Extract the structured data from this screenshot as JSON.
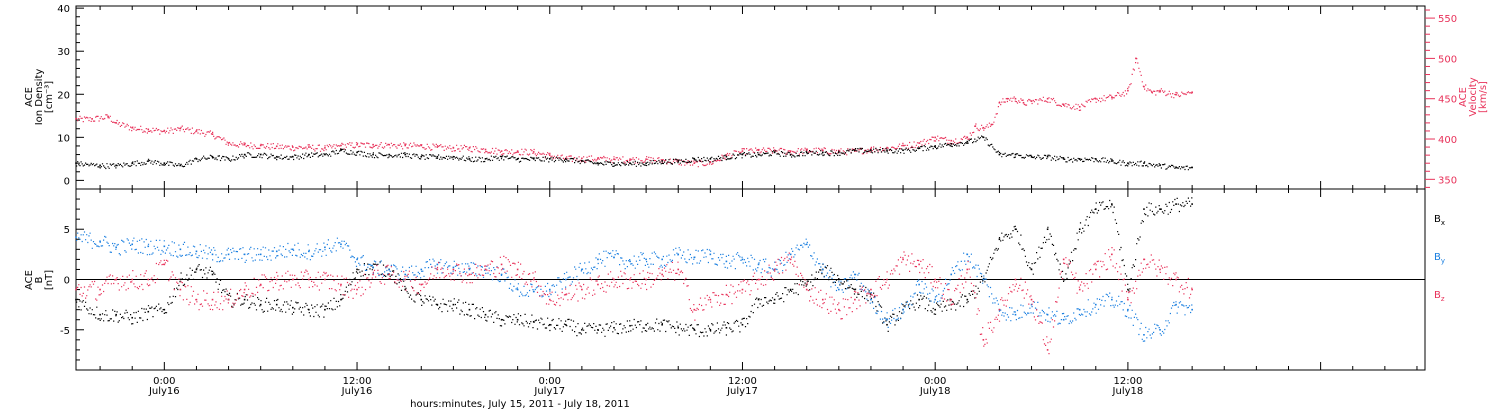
{
  "colors": {
    "black": "#000000",
    "red": "#e8325a",
    "blue": "#1a7fe0"
  },
  "chart_data": [
    {
      "type": "scatter",
      "panel": "top",
      "xlabel": "hours:minutes, July 15, 2011 - July 18, 2011",
      "x_unit": "hours since 2011-07-15 00:00",
      "xlim": [
        18.5,
        102.5
      ],
      "x_ticks": [
        {
          "x": 24,
          "label1": "0:00",
          "label2": "July16"
        },
        {
          "x": 36,
          "label1": "12:00",
          "label2": "July16"
        },
        {
          "x": 48,
          "label1": "0:00",
          "label2": "July17"
        },
        {
          "x": 60,
          "label1": "12:00",
          "label2": "July17"
        },
        {
          "x": 72,
          "label1": "0:00",
          "label2": "July18"
        },
        {
          "x": 84,
          "label1": "12:00",
          "label2": "July18"
        }
      ],
      "y_left": {
        "label_lines": [
          "ACE",
          "Ion Density",
          "[cm⁻³]"
        ],
        "ylim": [
          -2,
          40.5
        ],
        "ticks": [
          "0",
          "10",
          "20",
          "30",
          "40"
        ],
        "tick_values": [
          0,
          10,
          20,
          30,
          40
        ]
      },
      "y_right": {
        "label_lines": [
          "ACE",
          "Velocity",
          "[km/s]"
        ],
        "ylim": [
          338,
          565
        ],
        "ticks": [
          "350",
          "400",
          "450",
          "500",
          "550"
        ],
        "tick_values": [
          350,
          400,
          450,
          500,
          550
        ]
      },
      "series": [
        {
          "axis": "left",
          "color": "#000000",
          "x": [
            18.5,
            20,
            21,
            22,
            23,
            24,
            25,
            26,
            27,
            28,
            29,
            30,
            31,
            32,
            33,
            34,
            35,
            36,
            37,
            38,
            39,
            40,
            41,
            42,
            43,
            44,
            45,
            46,
            47,
            48,
            49,
            50,
            51,
            52,
            53,
            54,
            55,
            56,
            57,
            58,
            59,
            60,
            61,
            62,
            63,
            64,
            65,
            66,
            67,
            68,
            69,
            70,
            71,
            72,
            73,
            74,
            75,
            76,
            77,
            78,
            79,
            80,
            81,
            82,
            83,
            84,
            85,
            86,
            87,
            88
          ],
          "y": [
            4,
            3.5,
            3.5,
            4,
            4.5,
            4,
            3.5,
            5,
            5.5,
            5,
            6,
            6,
            5.5,
            5.5,
            6,
            6,
            7,
            6.5,
            6,
            6,
            6,
            5.5,
            5.5,
            5.5,
            5,
            5,
            5.5,
            5,
            5,
            5,
            5,
            4.5,
            4,
            4,
            4,
            4,
            4.5,
            4.5,
            5,
            5,
            5.5,
            6,
            6,
            6.5,
            6,
            6.5,
            6.5,
            6.5,
            7,
            7,
            7,
            7,
            7.5,
            8,
            8.5,
            9,
            10,
            6,
            6,
            5.5,
            5.5,
            5,
            5,
            5,
            4.5,
            4,
            4,
            3.5,
            3,
            3
          ]
        },
        {
          "axis": "right",
          "color": "#e8325a",
          "x": [
            18.5,
            19.5,
            20.5,
            21,
            22,
            23,
            24,
            25,
            26,
            27,
            28,
            29,
            30,
            31,
            32,
            33,
            34,
            35,
            36,
            37,
            38,
            39,
            40,
            41,
            42,
            43,
            44,
            45,
            46,
            47,
            48,
            49,
            50,
            51,
            52,
            53,
            54,
            55,
            56,
            57,
            58,
            59,
            60,
            61,
            62,
            63,
            64,
            65,
            66,
            67,
            68,
            69,
            70,
            71,
            72,
            73,
            74,
            74.5,
            75,
            75.5,
            76,
            76.5,
            77,
            77.5,
            78,
            79,
            80,
            81,
            82,
            83,
            84,
            84.5,
            85,
            85.5,
            86,
            87,
            88
          ],
          "y": [
            425,
            425,
            428,
            420,
            414,
            412,
            410,
            413,
            410,
            406,
            395,
            393,
            392,
            391,
            390,
            390,
            389,
            392,
            393,
            393,
            393,
            392,
            392,
            390,
            389,
            389,
            387,
            385,
            385,
            384,
            380,
            376,
            376,
            376,
            375,
            375,
            375,
            374,
            372,
            370,
            371,
            380,
            385,
            386,
            386,
            385,
            386,
            386,
            385,
            385,
            388,
            389,
            392,
            395,
            402,
            398,
            402,
            416,
            414,
            418,
            445,
            450,
            450,
            445,
            447,
            450,
            443,
            440,
            450,
            452,
            460,
            500,
            465,
            458,
            460,
            455,
            458
          ]
        }
      ]
    },
    {
      "type": "scatter",
      "panel": "bottom",
      "xlabel": "hours:minutes, July 15, 2011 - July 18, 2011",
      "xlim": [
        18.5,
        102.5
      ],
      "y_left": {
        "label_lines": [
          "ACE",
          "B",
          "[nT]"
        ],
        "ylim": [
          -9,
          9
        ],
        "ticks": [
          "-5",
          "0",
          "5"
        ],
        "tick_values": [
          -5,
          0,
          5
        ]
      },
      "zero_line": true,
      "legend_placement": "right",
      "series": [
        {
          "name": "Bx",
          "name_main": "B",
          "name_sub": "x",
          "color": "#000000",
          "x": [
            18.5,
            20,
            21,
            22,
            23,
            24,
            25,
            26,
            27,
            28,
            29,
            30,
            31,
            32,
            33,
            34,
            35,
            36,
            37,
            38,
            39,
            40,
            41,
            42,
            43,
            44,
            45,
            46,
            47,
            48,
            49,
            50,
            51,
            52,
            53,
            54,
            55,
            56,
            57,
            58,
            59,
            60,
            61,
            62,
            63,
            64,
            65,
            66,
            67,
            68,
            69,
            70,
            71,
            72,
            73,
            74,
            75,
            76,
            77,
            78,
            79,
            80,
            81,
            82,
            83,
            84,
            85,
            86,
            87,
            88
          ],
          "y": [
            -2,
            -3.5,
            -3.5,
            -3.8,
            -3.2,
            -3,
            0,
            1,
            0.5,
            -2,
            -2,
            -2.5,
            -2.5,
            -2.8,
            -3,
            -3,
            -2,
            1,
            1.2,
            1,
            -1,
            -2,
            -2.5,
            -2.5,
            -3,
            -3.5,
            -4,
            -4,
            -4.2,
            -4.5,
            -4.5,
            -5,
            -5,
            -4.8,
            -4.6,
            -4.5,
            -4.5,
            -4.8,
            -5,
            -5,
            -4.8,
            -4.5,
            -2,
            -2,
            -1,
            -0.5,
            1,
            0,
            -1,
            -1.5,
            -4.5,
            -3,
            -2,
            -3,
            -2.5,
            -2,
            0,
            4,
            5,
            1,
            5,
            0,
            5,
            7,
            7.5,
            -1,
            7,
            7,
            7.5,
            7.5
          ]
        },
        {
          "name": "By",
          "name_main": "B",
          "name_sub": "y",
          "color": "#1a7fe0",
          "x": [
            18.5,
            20,
            21,
            22,
            23,
            24,
            25,
            26,
            27,
            28,
            29,
            30,
            31,
            32,
            33,
            34,
            35,
            36,
            37,
            38,
            39,
            40,
            41,
            42,
            43,
            44,
            45,
            46,
            47,
            48,
            49,
            50,
            51,
            52,
            53,
            54,
            55,
            56,
            57,
            58,
            59,
            60,
            61,
            62,
            63,
            64,
            65,
            66,
            67,
            68,
            69,
            70,
            71,
            72,
            73,
            74,
            75,
            76,
            77,
            78,
            79,
            80,
            81,
            82,
            83,
            84,
            85,
            86,
            87,
            88
          ],
          "y": [
            4.2,
            3.8,
            3.2,
            3.5,
            3.3,
            3.3,
            3,
            2.8,
            2.5,
            2.5,
            2.5,
            2.5,
            2.8,
            3,
            2.8,
            3.2,
            3.5,
            2,
            1.2,
            1,
            0.5,
            1,
            1.5,
            1.2,
            1,
            1,
            0.5,
            -1,
            -1.2,
            -1,
            0,
            1,
            2,
            2.2,
            1.8,
            2,
            2,
            2.5,
            2.2,
            2.5,
            1.8,
            2,
            1.5,
            1,
            2.5,
            3.5,
            1,
            -1,
            0.5,
            -2,
            -4,
            -3,
            -0.5,
            -2,
            0.5,
            2.5,
            0,
            -3,
            -3.5,
            -2.5,
            -3.5,
            -4,
            -3,
            -2.5,
            -2,
            -3,
            -5.5,
            -5,
            -2.5,
            -3
          ]
        },
        {
          "name": "Bz",
          "name_main": "B",
          "name_sub": "z",
          "color": "#e8325a",
          "x": [
            18.5,
            20,
            21,
            22,
            23,
            24,
            25,
            26,
            27,
            28,
            29,
            30,
            31,
            32,
            33,
            34,
            35,
            36,
            37,
            38,
            39,
            40,
            41,
            42,
            43,
            44,
            45,
            46,
            47,
            48,
            49,
            50,
            51,
            52,
            53,
            54,
            55,
            56,
            57,
            58,
            59,
            60,
            61,
            62,
            63,
            64,
            65,
            66,
            67,
            68,
            69,
            70,
            71,
            72,
            73,
            74,
            75,
            76,
            77,
            78,
            79,
            80,
            81,
            82,
            83,
            84,
            85,
            86,
            87,
            88
          ],
          "y": [
            -1,
            -1,
            0,
            0,
            0,
            1.5,
            -1,
            -2,
            -2,
            -2,
            -1,
            -0.5,
            0,
            0,
            0,
            0,
            -0.5,
            -1,
            0.5,
            0.5,
            0,
            -0.5,
            1,
            1,
            0.5,
            1,
            1.5,
            1,
            0,
            -2,
            -1.5,
            -1,
            -0.5,
            0,
            0,
            0,
            0.5,
            1,
            -3,
            -2,
            -1.5,
            -1,
            0,
            1,
            2,
            -1,
            -2,
            -3,
            -2,
            -1,
            0,
            2,
            1.5,
            0,
            -2,
            1,
            -6,
            -3,
            0,
            -2,
            -7,
            2,
            -1,
            1,
            2.5,
            -2,
            2,
            1,
            0,
            -1
          ]
        }
      ]
    }
  ]
}
